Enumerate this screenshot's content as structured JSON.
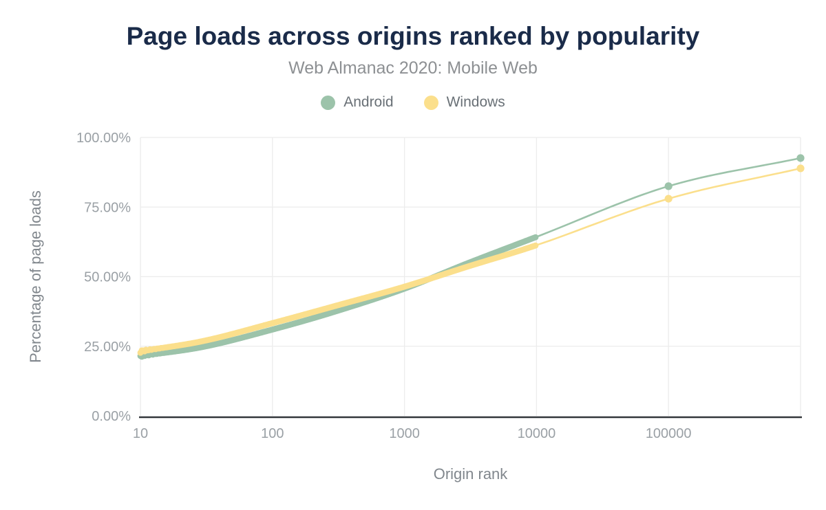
{
  "header": {
    "title": "Page loads across origins ranked by popularity",
    "subtitle": "Web Almanac 2020: Mobile Web"
  },
  "legend": [
    {
      "label": "Android",
      "color": "#9cc3aa"
    },
    {
      "label": "Windows",
      "color": "#fbdf8c"
    }
  ],
  "colors": {
    "title": "#1a2b49",
    "subtitle": "#8d9093",
    "tick_label": "#9aa0a5",
    "axis_title": "#81878d",
    "gridline": "#ececec",
    "axis_line": "#33373b",
    "android": "#9cc3aa",
    "windows": "#fbdf8c"
  },
  "chart_data": {
    "type": "line",
    "title": "Page loads across origins ranked by popularity",
    "subtitle": "Web Almanac 2020: Mobile Web",
    "xlabel": "Origin rank",
    "ylabel": "Percentage of page loads",
    "x_scale": "log",
    "xlim": [
      10,
      1000000
    ],
    "ylim": [
      0,
      100
    ],
    "grid": true,
    "legend_position": "top",
    "x_ticks": [
      10,
      100,
      1000,
      10000,
      100000
    ],
    "x_tick_labels": [
      "10",
      "100",
      "1000",
      "10000",
      "100000"
    ],
    "x_gridline_ranks": [
      10,
      100,
      1000,
      10000,
      100000,
      1000000
    ],
    "y_ticks": [
      0,
      25,
      50,
      75,
      100
    ],
    "y_tick_labels": [
      "0.00%",
      "25.00%",
      "50.00%",
      "75.00%",
      "100.00%"
    ],
    "x": [
      10,
      30,
      100,
      300,
      1000,
      3000,
      10000,
      100000,
      1000000
    ],
    "series": [
      {
        "name": "Android",
        "color": "#9cc3aa",
        "values": [
          21.5,
          24.8,
          31.0,
          37.5,
          45.7,
          54.8,
          64.3,
          82.5,
          92.6
        ],
        "dense_dot_range": [
          10,
          10000
        ],
        "marker_ranks": [
          100000,
          1000000
        ]
      },
      {
        "name": "Windows",
        "color": "#fbdf8c",
        "values": [
          23.2,
          26.9,
          33.3,
          39.5,
          46.4,
          53.6,
          61.3,
          78.0,
          88.9
        ],
        "dense_dot_range": [
          10,
          10000
        ],
        "marker_ranks": [
          100000,
          1000000
        ]
      }
    ]
  }
}
